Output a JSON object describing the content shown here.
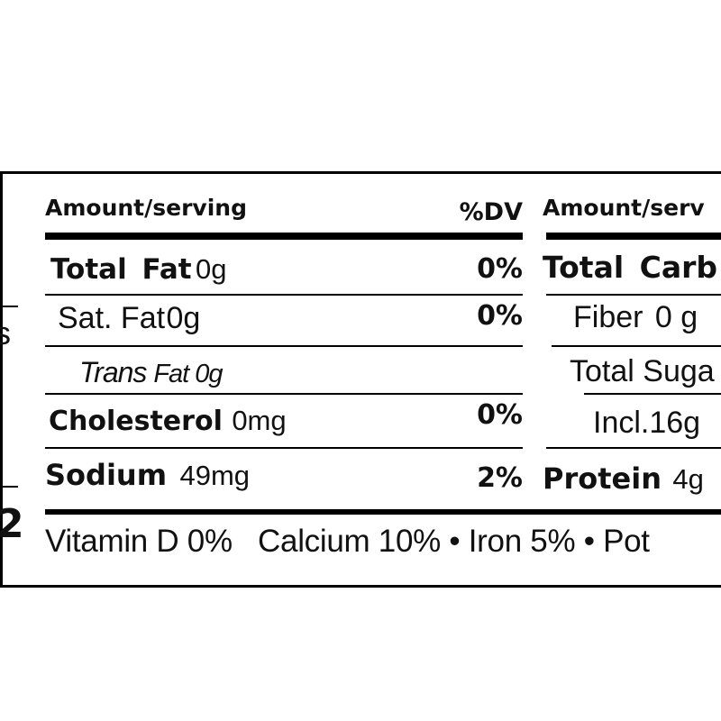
{
  "left_column": {
    "header_amount": "Amount/serving",
    "header_dv": "%DV",
    "rows": [
      {
        "name": "Total Fat",
        "amount": "0g",
        "dv": "0%"
      },
      {
        "name": "Sat. Fat",
        "amount": "0g",
        "dv": "0%"
      },
      {
        "name": "Trans",
        "amount": "Fat 0g",
        "dv": ""
      },
      {
        "name": "Cholesterol",
        "amount": "0mg",
        "dv": "0%"
      },
      {
        "name": "Sodium",
        "amount": "49mg",
        "dv": "2%"
      }
    ]
  },
  "right_column": {
    "header_amount": "Amount/serv",
    "rows": [
      {
        "name": "Total Carb",
        "amount": ""
      },
      {
        "name": "Fiber",
        "amount": "0 g"
      },
      {
        "name": "Total Suga",
        "amount": ""
      },
      {
        "name": "Incl.16g",
        "amount": ""
      },
      {
        "name": "Protein",
        "amount": "4g"
      }
    ]
  },
  "edge_fragments": {
    "s": "s",
    "two": "2"
  },
  "vitamins_line": "Vitamin D 0%   Calcium 10% • Iron 5% • Pot"
}
